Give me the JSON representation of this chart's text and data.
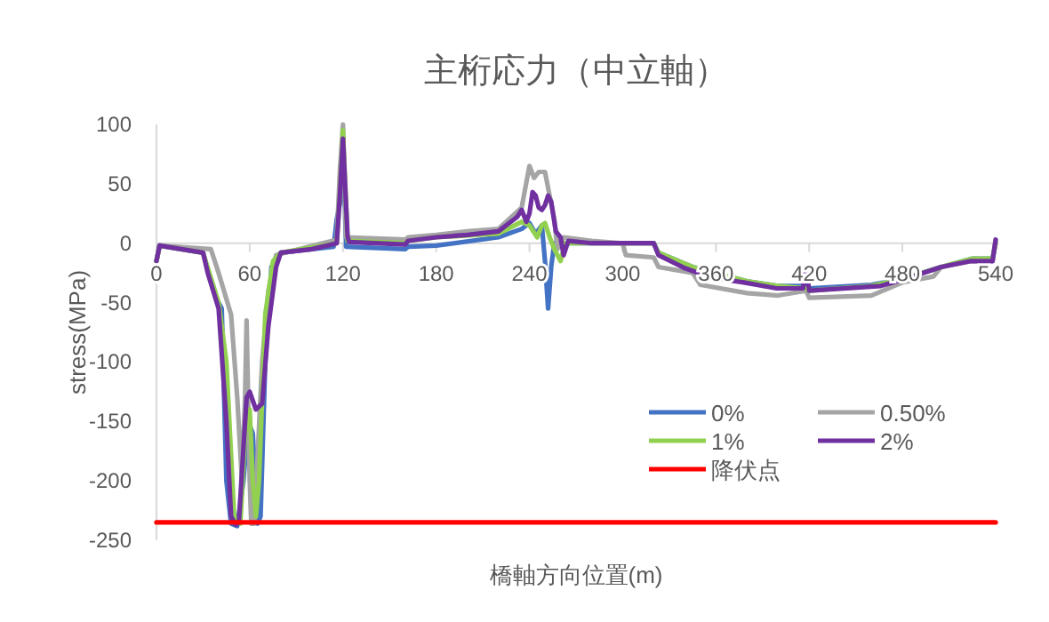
{
  "chart_data": {
    "type": "line",
    "title": "主桁応力（中立軸）",
    "xlabel": "橋軸方向位置(m)",
    "ylabel": "stress(MPa)",
    "xlim": [
      0,
      540
    ],
    "ylim": [
      -250,
      100
    ],
    "xticks": [
      0,
      60,
      120,
      180,
      240,
      300,
      360,
      420,
      480,
      540
    ],
    "yticks": [
      -250,
      -200,
      -150,
      -100,
      -50,
      0,
      50,
      100
    ],
    "grid": false,
    "legend": "bottom right",
    "marker": "none",
    "line_style": "solid",
    "series": [
      {
        "name": "0%",
        "color": "#4472c4",
        "x": [
          0,
          2,
          30,
          38,
          42,
          45,
          48,
          52,
          56,
          59,
          62,
          65,
          67,
          70,
          74,
          80,
          114,
          116,
          119,
          120,
          122,
          160,
          162,
          180,
          220,
          235,
          240,
          244,
          248,
          250,
          252,
          254,
          256,
          280,
          320,
          323,
          345,
          380,
          400,
          418,
          420,
          460,
          480,
          505,
          525,
          538,
          540
        ],
        "values": [
          -15,
          -2,
          -8,
          -45,
          -55,
          -200,
          -236,
          -238,
          -200,
          -150,
          -160,
          -236,
          -230,
          -100,
          -20,
          -8,
          -3,
          20,
          40,
          90,
          -3,
          -5,
          -3,
          -2,
          5,
          12,
          17,
          8,
          15,
          -15,
          -55,
          -20,
          0,
          0,
          0,
          -8,
          -20,
          -32,
          -36,
          -36,
          -38,
          -35,
          -30,
          -20,
          -13,
          -13,
          0
        ]
      },
      {
        "name": "0.50%",
        "color": "#a5a5a5",
        "x": [
          0,
          2,
          35,
          40,
          48,
          52,
          55,
          57,
          58,
          60,
          61,
          63,
          68,
          72,
          77,
          116,
          118,
          120,
          122,
          160,
          162,
          180,
          200,
          220,
          235,
          240,
          243,
          246,
          250,
          253,
          256,
          258,
          262,
          280,
          300,
          302,
          320,
          323,
          345,
          350,
          380,
          400,
          418,
          420,
          460,
          480,
          500,
          505,
          525,
          538,
          540
        ],
        "values": [
          -15,
          -2,
          -5,
          -25,
          -60,
          -130,
          -200,
          -130,
          -65,
          -200,
          -236,
          -236,
          -100,
          -40,
          -10,
          3,
          60,
          100,
          5,
          3,
          5,
          7,
          10,
          12,
          30,
          65,
          55,
          60,
          60,
          40,
          20,
          -5,
          5,
          2,
          0,
          -10,
          -12,
          -20,
          -25,
          -35,
          -42,
          -44,
          -40,
          -46,
          -44,
          -33,
          -28,
          -20,
          -15,
          -15,
          3
        ]
      },
      {
        "name": "1%",
        "color": "#92d050",
        "x": [
          0,
          2,
          30,
          40,
          45,
          50,
          54,
          57,
          60,
          62,
          64,
          66,
          70,
          75,
          80,
          116,
          118,
          120,
          123,
          160,
          162,
          180,
          220,
          235,
          240,
          245,
          248,
          250,
          253,
          256,
          260,
          263,
          280,
          320,
          323,
          345,
          380,
          400,
          418,
          420,
          460,
          480,
          505,
          525,
          538,
          540
        ],
        "values": [
          -15,
          -2,
          -8,
          -50,
          -100,
          -230,
          -236,
          -160,
          -140,
          -200,
          -230,
          -200,
          -60,
          -15,
          -8,
          0,
          40,
          95,
          2,
          0,
          2,
          5,
          8,
          18,
          15,
          5,
          15,
          17,
          5,
          -5,
          -15,
          0,
          0,
          0,
          -8,
          -20,
          -32,
          -36,
          -38,
          -40,
          -36,
          -30,
          -20,
          -13,
          -13,
          0
        ]
      },
      {
        "name": "2%",
        "color": "#7030a0",
        "x": [
          0,
          2,
          30,
          33,
          40,
          45,
          48,
          51,
          53,
          58,
          60,
          64,
          68,
          72,
          77,
          80,
          100,
          116,
          118,
          120,
          123,
          124,
          160,
          162,
          180,
          200,
          220,
          232,
          235,
          238,
          240,
          242,
          244,
          246,
          248,
          250,
          252,
          254,
          257,
          260,
          262,
          265,
          280,
          320,
          323,
          340,
          357,
          378,
          399,
          416,
          418,
          420,
          466,
          482,
          505,
          524,
          538,
          540
        ],
        "values": [
          -15,
          -2,
          -8,
          -25,
          -55,
          -150,
          -230,
          -237,
          -235,
          -130,
          -125,
          -140,
          -135,
          -70,
          -20,
          -8,
          -5,
          0,
          40,
          88,
          5,
          1,
          -1,
          2,
          5,
          7,
          10,
          22,
          28,
          18,
          25,
          43,
          40,
          30,
          28,
          32,
          40,
          35,
          10,
          5,
          -10,
          2,
          0,
          0,
          -10,
          -21,
          -29,
          -33,
          -38,
          -38,
          -20,
          -40,
          -36,
          -30,
          -20,
          -15,
          -15,
          3
        ]
      },
      {
        "name": "降伏点",
        "color": "#ff0000",
        "x": [
          0,
          540
        ],
        "values": [
          -235,
          -235
        ]
      }
    ]
  }
}
